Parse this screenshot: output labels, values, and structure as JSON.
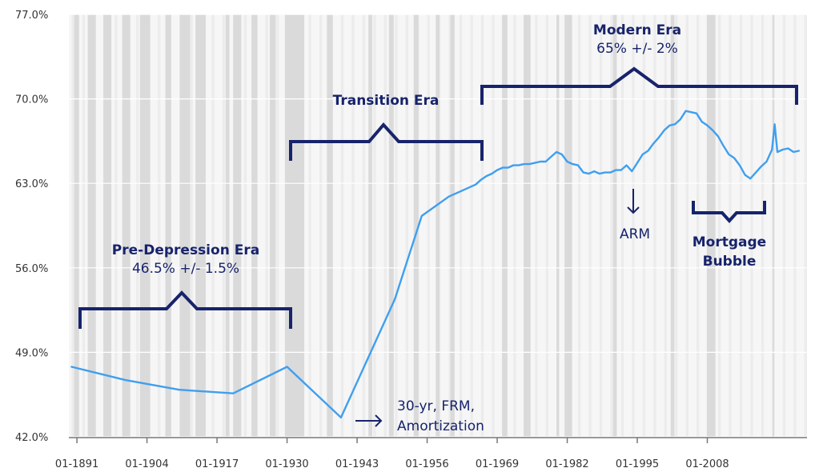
{
  "chart_data": {
    "type": "line",
    "title": "",
    "xlabel": "",
    "ylabel": "",
    "xlim": [
      1889.5,
      2026.5
    ],
    "ylim": [
      42,
      77
    ],
    "y_ticks": [
      42,
      49,
      56,
      63,
      70,
      77
    ],
    "y_tick_labels": [
      "42.0%",
      "49.0%",
      "56.0%",
      "63.0%",
      "70.0%",
      "77.0%"
    ],
    "x_ticks": [
      1891,
      1904,
      1917,
      1930,
      1943,
      1956,
      1969,
      1982,
      1995,
      2008
    ],
    "x_tick_labels": [
      "01-1891",
      "01-1904",
      "01-1917",
      "01-1930",
      "01-1943",
      "01-1956",
      "01-1969",
      "01-1982",
      "01-1995",
      "01-2008"
    ],
    "grid": true,
    "line_color": "#3f9fef",
    "annotation_color": "#17236b",
    "recession_shading": [
      [
        1890.5,
        1891.4
      ],
      [
        1893.0,
        1894.5
      ],
      [
        1895.9,
        1897.4
      ],
      [
        1899.4,
        1900.9
      ],
      [
        1902.7,
        1904.6
      ],
      [
        1907.4,
        1908.5
      ],
      [
        1910.1,
        1912.0
      ],
      [
        1913.0,
        1914.9
      ],
      [
        1918.6,
        1919.3
      ],
      [
        1920.0,
        1921.5
      ],
      [
        1923.4,
        1924.5
      ],
      [
        1926.8,
        1927.9
      ],
      [
        1929.6,
        1933.2
      ],
      [
        1937.4,
        1938.5
      ],
      [
        1945.1,
        1945.8
      ],
      [
        1948.9,
        1949.8
      ],
      [
        1953.5,
        1954.4
      ],
      [
        1957.6,
        1958.3
      ],
      [
        1960.3,
        1961.1
      ],
      [
        1969.9,
        1970.9
      ],
      [
        1973.9,
        1975.2
      ],
      [
        1980.0,
        1980.5
      ],
      [
        1981.5,
        1982.9
      ],
      [
        1990.5,
        1991.2
      ],
      [
        2001.2,
        2001.9
      ],
      [
        2007.9,
        2009.5
      ],
      [
        2020.1,
        2020.4
      ]
    ],
    "series": [
      {
        "name": "",
        "x": [
          1890,
          1900,
          1910,
          1920,
          1930,
          1940,
          1950,
          1955,
          1960,
          1965,
          1966,
          1967,
          1968,
          1969,
          1970,
          1971,
          1972,
          1973,
          1974,
          1975,
          1976,
          1977,
          1978,
          1979,
          1980,
          1981,
          1982,
          1983,
          1984,
          1985,
          1986,
          1987,
          1988,
          1989,
          1990,
          1991,
          1992,
          1993,
          1994,
          1995,
          1996,
          1997,
          1998,
          1999,
          2000,
          2001,
          2002,
          2003,
          2004,
          2005,
          2006,
          2007,
          2008,
          2009,
          2010,
          2011,
          2012,
          2013,
          2014,
          2015,
          2016,
          2017,
          2018,
          2019,
          2020,
          2020.5,
          2021,
          2022,
          2023,
          2024,
          2025
        ],
        "y": [
          47.8,
          46.7,
          45.9,
          45.6,
          47.8,
          43.6,
          53.4,
          60.3,
          61.9,
          62.9,
          63.3,
          63.6,
          63.8,
          64.1,
          64.3,
          64.3,
          64.5,
          64.5,
          64.6,
          64.6,
          64.7,
          64.8,
          64.8,
          65.2,
          65.6,
          65.4,
          64.8,
          64.6,
          64.5,
          63.9,
          63.8,
          64.0,
          63.8,
          63.9,
          63.9,
          64.1,
          64.1,
          64.5,
          64.0,
          64.7,
          65.4,
          65.7,
          66.3,
          66.8,
          67.4,
          67.8,
          67.9,
          68.3,
          69.0,
          68.9,
          68.8,
          68.1,
          67.8,
          67.4,
          66.9,
          66.1,
          65.4,
          65.1,
          64.5,
          63.7,
          63.4,
          63.9,
          64.4,
          64.8,
          65.8,
          67.9,
          65.6,
          65.8,
          65.9,
          65.6,
          65.7
        ]
      }
    ],
    "annotations": {
      "pre_depression_title": "Pre-Depression Era",
      "pre_depression_sub": "46.5% +/- 1.5%",
      "transition_title": "Transition Era",
      "modern_title": "Modern Era",
      "modern_sub": "65% +/- 2%",
      "arm_label": "ARM",
      "mortgage_line1": "Mortgage",
      "mortgage_line2": "Bubble",
      "frm_line1": "30-yr, FRM,",
      "frm_line2": "Amortization"
    }
  }
}
